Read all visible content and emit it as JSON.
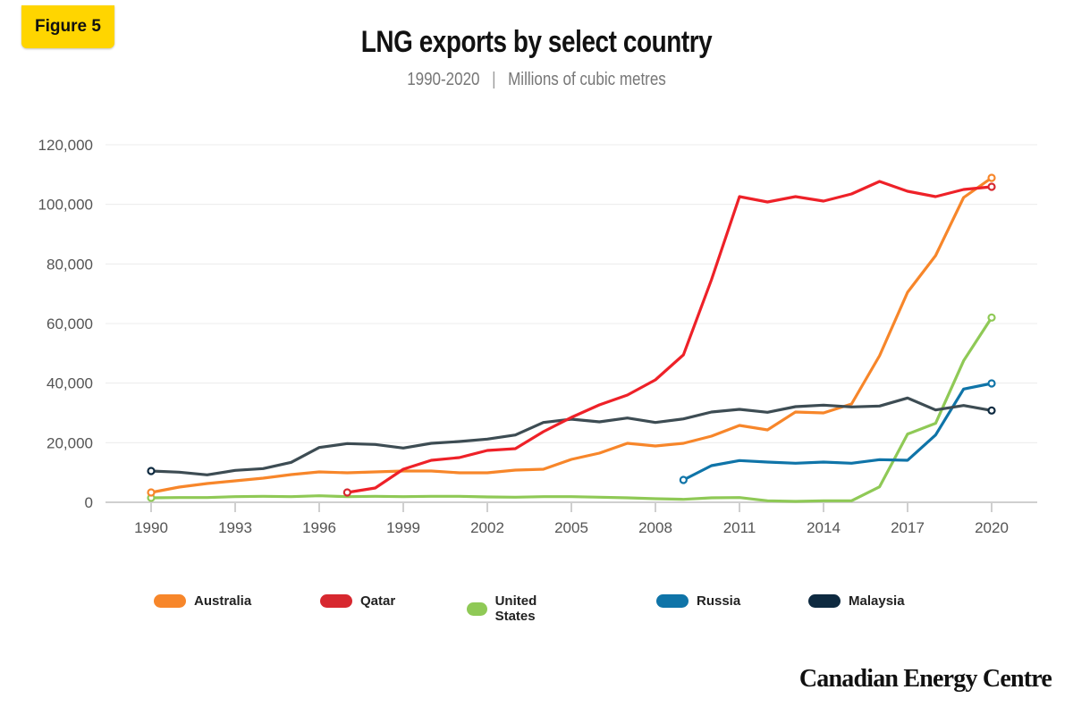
{
  "badge": "Figure 5",
  "logo": "Canadian Energy Centre",
  "chart_data": {
    "type": "line",
    "title": "LNG exports by select country",
    "subtitle_period": "1990-2020",
    "subtitle_unit": "Millions of cubic metres",
    "xlabel": "",
    "ylabel": "",
    "xlim": [
      1990,
      2020
    ],
    "ylim": [
      0,
      120000
    ],
    "x_ticks": [
      "1990",
      "1993",
      "1996",
      "1999",
      "2002",
      "2005",
      "2008",
      "2011",
      "2014",
      "2017",
      "2020"
    ],
    "y_ticks": [
      "0",
      "20,000",
      "40,000",
      "60,000",
      "80,000",
      "100,000",
      "120,000"
    ],
    "grid": true,
    "legend_position": "bottom",
    "series": [
      {
        "name": "Australia",
        "color": "#f7862a",
        "legend_color": "#f7862a",
        "start": 1990,
        "values": [
          3300,
          5100,
          6300,
          7200,
          8100,
          9300,
          10200,
          9900,
          10200,
          10500,
          10500,
          9900,
          9900,
          10800,
          11100,
          14400,
          16500,
          19800,
          18900,
          19800,
          22200,
          25800,
          24300,
          30300,
          30000,
          33000,
          49200,
          70500,
          82800,
          102300,
          108900
        ]
      },
      {
        "name": "Qatar",
        "color": "#ee2128",
        "legend_color": "#d7282f",
        "start": 1997,
        "values": [
          3300,
          4800,
          11100,
          14100,
          15000,
          17400,
          18000,
          23700,
          28500,
          32700,
          36000,
          41100,
          49500,
          74700,
          102600,
          100800,
          102600,
          101100,
          103500,
          107700,
          104400,
          102600,
          105000,
          105900
        ]
      },
      {
        "name": "United States",
        "color": "#8fc956",
        "legend_color": "#8fc956",
        "start": 1990,
        "values": [
          1500,
          1600,
          1600,
          1900,
          2000,
          1900,
          2200,
          1900,
          2000,
          1900,
          2000,
          2000,
          1800,
          1700,
          1900,
          1900,
          1700,
          1500,
          1200,
          1000,
          1500,
          1600,
          500,
          300,
          500,
          500,
          5200,
          22900,
          26500,
          47500,
          62000
        ]
      },
      {
        "name": "Russia",
        "color": "#0f74a8",
        "legend_color": "#0f74a8",
        "start": 2009,
        "values": [
          7500,
          12300,
          14000,
          13500,
          13100,
          13500,
          13100,
          14300,
          14100,
          22600,
          38000,
          39900
        ]
      },
      {
        "name": "Malaysia",
        "color": "#3d4c53",
        "legend_color": "#0e2a40",
        "start": 1990,
        "values": [
          10500,
          10100,
          9200,
          10700,
          11300,
          13400,
          18400,
          19700,
          19400,
          18200,
          19800,
          20400,
          21200,
          22600,
          26800,
          27900,
          27000,
          28300,
          26800,
          28000,
          30300,
          31200,
          30200,
          32100,
          32600,
          32000,
          32300,
          35000,
          31000,
          32500,
          30800
        ]
      }
    ]
  }
}
